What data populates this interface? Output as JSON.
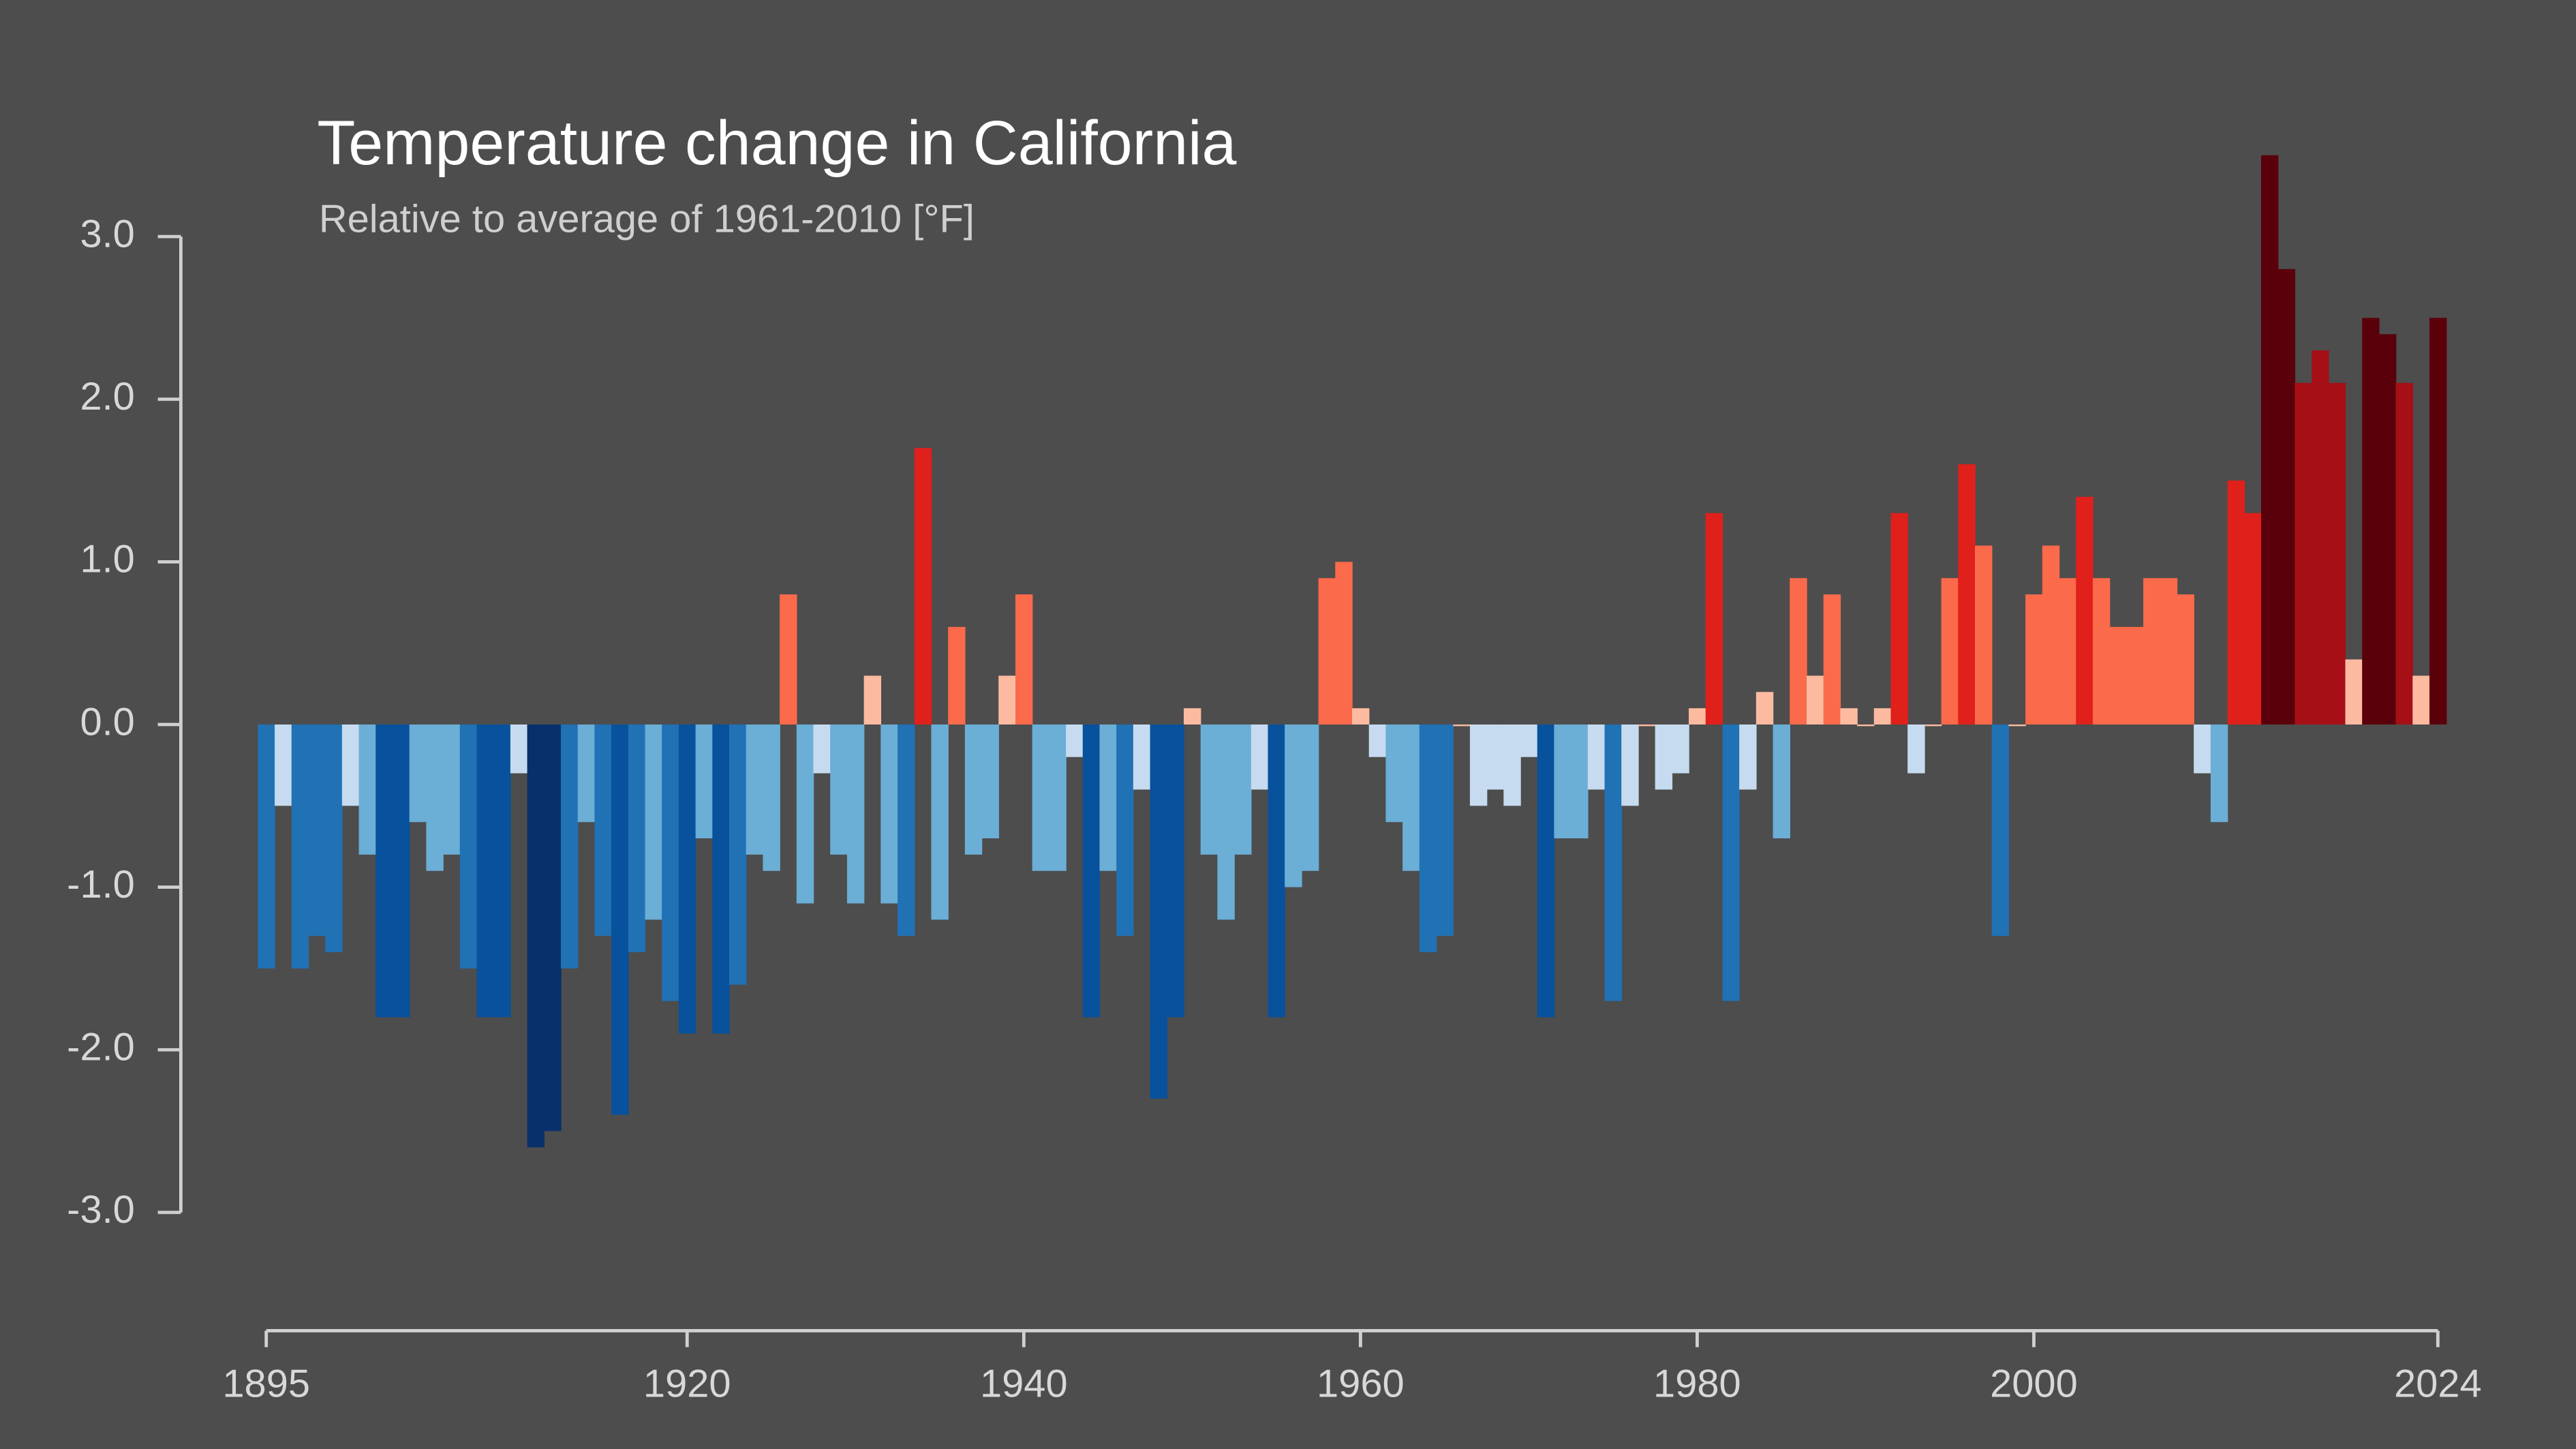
{
  "chart_data": {
    "type": "bar",
    "title": "Temperature change in California",
    "subtitle": "Relative to average of 1961-2010  [°F]",
    "x": [
      1895,
      1896,
      1897,
      1898,
      1899,
      1900,
      1901,
      1902,
      1903,
      1904,
      1905,
      1906,
      1907,
      1908,
      1909,
      1910,
      1911,
      1912,
      1913,
      1914,
      1915,
      1916,
      1917,
      1918,
      1919,
      1920,
      1921,
      1922,
      1923,
      1924,
      1925,
      1926,
      1927,
      1928,
      1929,
      1930,
      1931,
      1932,
      1933,
      1934,
      1935,
      1936,
      1937,
      1938,
      1939,
      1940,
      1941,
      1942,
      1943,
      1944,
      1945,
      1946,
      1947,
      1948,
      1949,
      1950,
      1951,
      1952,
      1953,
      1954,
      1955,
      1956,
      1957,
      1958,
      1959,
      1960,
      1961,
      1962,
      1963,
      1964,
      1965,
      1966,
      1967,
      1968,
      1969,
      1970,
      1971,
      1972,
      1973,
      1974,
      1975,
      1976,
      1977,
      1978,
      1979,
      1980,
      1981,
      1982,
      1983,
      1984,
      1985,
      1986,
      1987,
      1988,
      1989,
      1990,
      1991,
      1992,
      1993,
      1994,
      1995,
      1996,
      1997,
      1998,
      1999,
      2000,
      2001,
      2002,
      2003,
      2004,
      2005,
      2006,
      2007,
      2008,
      2009,
      2010,
      2011,
      2012,
      2013,
      2014,
      2015,
      2016,
      2017,
      2018,
      2019,
      2020,
      2021,
      2022,
      2023,
      2024
    ],
    "values": [
      -1.5,
      -0.5,
      -1.5,
      -1.3,
      -1.4,
      -0.5,
      -0.8,
      -1.8,
      -1.8,
      -0.6,
      -0.9,
      -0.8,
      -1.5,
      -1.8,
      -1.8,
      -0.3,
      -2.6,
      -2.5,
      -1.5,
      -0.6,
      -1.3,
      -2.4,
      -1.4,
      -1.2,
      -1.7,
      -1.9,
      -0.7,
      -1.9,
      -1.6,
      -0.8,
      -0.9,
      0.8,
      -1.1,
      -0.3,
      -0.8,
      -1.1,
      0.3,
      -1.1,
      -1.3,
      1.7,
      -1.2,
      0.6,
      -0.8,
      -0.7,
      0.3,
      0.8,
      -0.9,
      -0.9,
      -0.2,
      -1.8,
      -0.9,
      -1.3,
      -0.4,
      -2.3,
      -1.8,
      0.1,
      -0.8,
      -1.2,
      -0.8,
      -0.4,
      -1.8,
      -1.0,
      -0.9,
      0.9,
      1.0,
      0.1,
      -0.2,
      -0.6,
      -0.9,
      -1.4,
      -1.3,
      0.0,
      -0.5,
      -0.4,
      -0.5,
      -0.2,
      -1.8,
      -0.7,
      -0.7,
      -0.4,
      -1.7,
      -0.5,
      0.0,
      -0.4,
      -0.3,
      0.1,
      1.3,
      -1.7,
      -0.4,
      0.2,
      -0.7,
      0.9,
      0.3,
      0.8,
      0.1,
      0.0,
      0.1,
      1.3,
      -0.3,
      0.0,
      0.9,
      1.6,
      1.1,
      -1.3,
      0.0,
      0.8,
      1.1,
      0.9,
      1.4,
      0.9,
      0.6,
      0.6,
      0.9,
      0.9,
      0.8,
      -0.3,
      -0.6,
      1.5,
      1.3,
      3.5,
      2.8,
      2.1,
      2.3,
      2.1,
      0.4,
      2.5,
      2.4,
      2.1,
      0.3,
      2.5
    ],
    "colormap": [
      "#08306b",
      "#08519c",
      "#2171b5",
      "#6baed6",
      "#c6dbef",
      "#fcbba1",
      "#fb6a4a",
      "#e0201b",
      "#a50f15",
      "#5a000b"
    ],
    "xlim": [
      1895,
      2024
    ],
    "xticks": [
      1895,
      1920,
      1940,
      1960,
      1980,
      2000,
      2024
    ],
    "ylim": [
      -3.7,
      3.8
    ],
    "yticks": [
      {
        "value": -3,
        "label": "-3.0"
      },
      {
        "value": -2,
        "label": "-2.0"
      },
      {
        "value": -1,
        "label": "-1.0"
      },
      {
        "value": 0,
        "label": "0.0"
      },
      {
        "value": 1,
        "label": "1.0"
      },
      {
        "value": 2,
        "label": "2.0"
      },
      {
        "value": 3,
        "label": "3.0"
      }
    ]
  }
}
